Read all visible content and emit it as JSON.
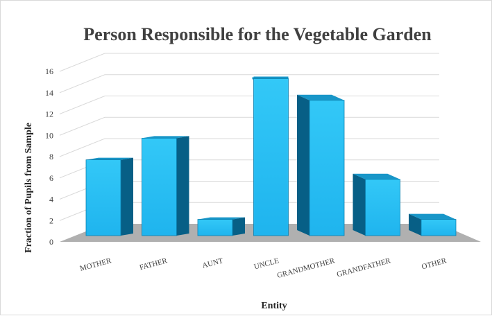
{
  "chart_data": {
    "type": "bar",
    "title": "Person Responsible for the Vegetable Garden",
    "xlabel": "Entity",
    "ylabel": "Fraction of Pupils from Sample",
    "categories": [
      "MOTHER",
      "FATHER",
      "AUNT",
      "UNCLE",
      "GRANDMOTHER",
      "GRANDFATHER",
      "OTHER"
    ],
    "values": [
      7,
      9,
      1.5,
      14.5,
      12.5,
      5.2,
      1.5
    ],
    "ylim": [
      0,
      16
    ],
    "yticks": [
      "0",
      "2",
      "4",
      "6",
      "8",
      "10",
      "12",
      "14",
      "16"
    ],
    "grid": true,
    "legend": "none",
    "colors": {
      "bar_front": "#1fb4ee",
      "bar_front_top": "#33c8f7",
      "bar_side": "#075f86",
      "bar_top": "#1896c8",
      "floor": "#b0b0b0",
      "grid": "#d9d9d9"
    }
  }
}
